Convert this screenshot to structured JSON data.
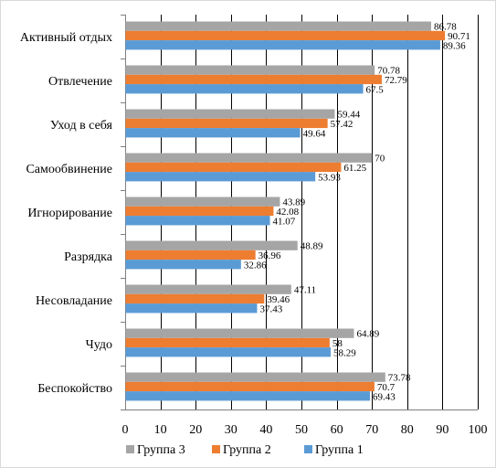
{
  "chart_data": {
    "type": "bar",
    "orientation": "horizontal",
    "categories": [
      "Активный отдых",
      "Отвлечение",
      "Уход в себя",
      "Самообвинение",
      "Игнорирование",
      "Разрядка",
      "Несовладание",
      "Чудо",
      "Беспокойство"
    ],
    "series": [
      {
        "name": "Группа 3",
        "color": "#A5A5A5",
        "values": [
          86.78,
          70.78,
          59.44,
          70,
          43.89,
          48.89,
          47.11,
          64.89,
          73.78
        ]
      },
      {
        "name": "Группа 2",
        "color": "#ED7D31",
        "values": [
          90.71,
          72.79,
          57.42,
          61.25,
          42.08,
          36.96,
          39.46,
          58,
          70.7
        ]
      },
      {
        "name": "Группа 1",
        "color": "#5B9BD5",
        "values": [
          89.36,
          67.5,
          49.64,
          53.93,
          41.07,
          32.86,
          37.43,
          58.29,
          69.43
        ]
      }
    ],
    "data_label_text": [
      [
        "86.78",
        "70.78",
        "59.44",
        "70",
        "43.89",
        "48.89",
        "47.11",
        "64.89",
        "73.78"
      ],
      [
        "90.71",
        "72.79",
        "57.42",
        "61.25",
        "42.08",
        "36.96",
        "39.46",
        "58",
        "70.7"
      ],
      [
        "89.36",
        "67.5",
        "49.64",
        "53.93",
        "41.07",
        "32.86",
        "37.43",
        "58.29",
        "69.43"
      ]
    ],
    "xlim": [
      0,
      100
    ],
    "xticks": [
      0,
      10,
      20,
      30,
      40,
      50,
      60,
      70,
      80,
      90,
      100
    ],
    "title": "",
    "xlabel": "",
    "ylabel": "",
    "grid": "vertical",
    "legend_position": "bottom"
  }
}
